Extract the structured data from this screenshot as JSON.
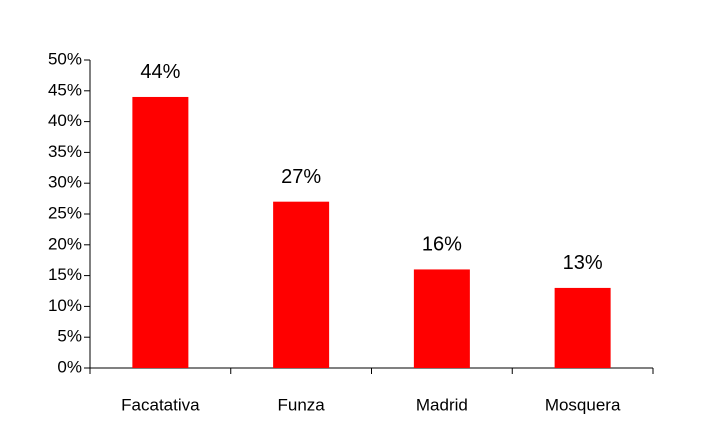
{
  "chart_data": {
    "type": "bar",
    "categories": [
      "Facatativa",
      "Funza",
      "Madrid",
      "Mosquera"
    ],
    "values": [
      44,
      27,
      16,
      13
    ],
    "value_labels": [
      "44%",
      "27%",
      "16%",
      "13%"
    ],
    "color": "#ff0000",
    "ylim": [
      0,
      50
    ],
    "yticks": [
      {
        "value": 0,
        "label": "0%"
      },
      {
        "value": 5,
        "label": "5%"
      },
      {
        "value": 10,
        "label": "10%"
      },
      {
        "value": 15,
        "label": "15%"
      },
      {
        "value": 20,
        "label": "20%"
      },
      {
        "value": 25,
        "label": "25%"
      },
      {
        "value": 30,
        "label": "30%"
      },
      {
        "value": 35,
        "label": "35%"
      },
      {
        "value": 40,
        "label": "40%"
      },
      {
        "value": 45,
        "label": "45%"
      },
      {
        "value": 50,
        "label": "50%"
      }
    ],
    "grid": false
  }
}
